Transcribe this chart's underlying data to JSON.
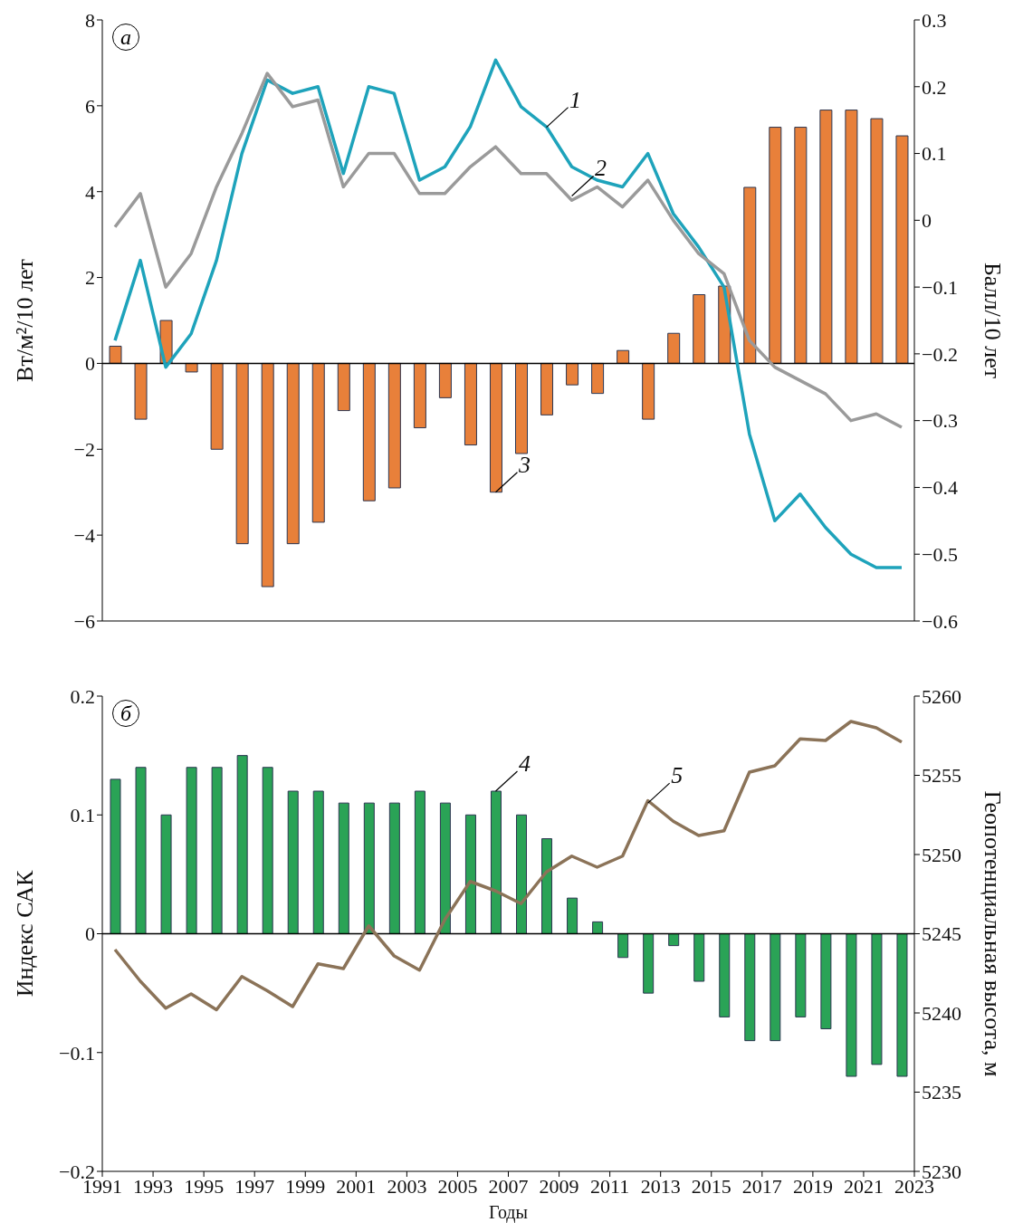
{
  "chart_data": [
    {
      "type": "bar",
      "ylabel": "Вт/м²/10 лет",
      "y2label": "Балл/10 лет",
      "x": [
        1991.5,
        1992.5,
        1993.5,
        1994.5,
        1995.5,
        1996.5,
        1997.5,
        1998.5,
        1999.5,
        2000.5,
        2001.5,
        2002.5,
        2003.5,
        2004.5,
        2005.5,
        2006.5,
        2007.5,
        2008.5,
        2009.5,
        2010.5,
        2011.5,
        2012.5,
        2013.5,
        2014.5,
        2015.5,
        2016.5,
        2017.5,
        2018.5,
        2019.5,
        2020.5,
        2021.5,
        2022.5
      ],
      "xlim": [
        1991,
        2023
      ],
      "xticks": [
        1991,
        1993,
        1995,
        1997,
        1999,
        2001,
        2003,
        2005,
        2007,
        2009,
        2011,
        2013,
        2015,
        2017,
        2019,
        2021,
        2023
      ],
      "ylim": [
        -6,
        8
      ],
      "yticks": [
        -6,
        -4,
        -2,
        0,
        2,
        4,
        6,
        8
      ],
      "y2lim": [
        -0.6,
        0.3
      ],
      "y2ticks": [
        -0.6,
        -0.5,
        -0.4,
        -0.3,
        -0.2,
        -0.1,
        0,
        0.1,
        0.2,
        0.3
      ],
      "tick_labels": "y",
      "legend": false,
      "series": [
        {
          "color": "#e8803a",
          "values": [
            0.4,
            -1.3,
            1.0,
            -0.2,
            -2.0,
            -4.2,
            -5.2,
            -4.2,
            -3.7,
            -1.1,
            -3.2,
            -2.9,
            -1.5,
            -0.8,
            -1.9,
            -3.0,
            -2.1,
            -1.2,
            -0.5,
            -0.7,
            0.3,
            -1.3,
            0.7,
            1.6,
            1.8,
            4.1,
            5.5,
            5.5,
            5.9,
            5.9,
            5.7,
            5.3
          ]
        },
        {
          "type": "line",
          "axis": "y2",
          "color": "#1ea3bb",
          "values": [
            -0.18,
            -0.06,
            -0.22,
            -0.17,
            -0.06,
            0.1,
            0.21,
            0.19,
            0.2,
            0.07,
            0.2,
            0.19,
            0.06,
            0.08,
            0.14,
            0.24,
            0.17,
            0.14,
            0.08,
            0.06,
            0.05,
            0.1,
            0.01,
            -0.04,
            -0.1,
            -0.32,
            -0.45,
            -0.41,
            -0.46,
            -0.5,
            -0.52,
            -0.52
          ]
        },
        {
          "type": "line",
          "axis": "y2",
          "color": "#9a9a9a",
          "values": [
            -0.01,
            0.04,
            -0.1,
            -0.05,
            0.05,
            0.13,
            0.22,
            0.17,
            0.18,
            0.05,
            0.1,
            0.1,
            0.04,
            0.04,
            0.08,
            0.11,
            0.07,
            0.07,
            0.03,
            0.05,
            0.02,
            0.06,
            0.0,
            -0.05,
            -0.08,
            -0.18,
            -0.22,
            -0.24,
            -0.26,
            -0.3,
            -0.29,
            -0.31
          ]
        }
      ],
      "ref_lines": [
        {
          "axis": "y",
          "value": 0
        }
      ],
      "annotations": [
        "а",
        {
          "text": "1",
          "x": 2008.5,
          "y": 5.5
        },
        {
          "text": "2",
          "x": 2009.5,
          "y": 3.9
        },
        {
          "text": "3",
          "x": 2006.5,
          "y": -3.0
        }
      ]
    },
    {
      "type": "bar",
      "xlabel": "Годы",
      "ylabel": "Индекс САК",
      "y2label": "Геопотенциальная высота, м",
      "x": [
        1991.5,
        1992.5,
        1993.5,
        1994.5,
        1995.5,
        1996.5,
        1997.5,
        1998.5,
        1999.5,
        2000.5,
        2001.5,
        2002.5,
        2003.5,
        2004.5,
        2005.5,
        2006.5,
        2007.5,
        2008.5,
        2009.5,
        2010.5,
        2011.5,
        2012.5,
        2013.5,
        2014.5,
        2015.5,
        2016.5,
        2017.5,
        2018.5,
        2019.5,
        2020.5,
        2021.5,
        2022.5
      ],
      "xlim": [
        1991,
        2023
      ],
      "xticks": [
        1991,
        1993,
        1995,
        1997,
        1999,
        2001,
        2003,
        2005,
        2007,
        2009,
        2011,
        2013,
        2015,
        2017,
        2019,
        2021,
        2023
      ],
      "ylim": [
        -0.2,
        0.2
      ],
      "yticks": [
        -0.2,
        -0.1,
        0,
        0.1,
        0.2
      ],
      "y2lim": [
        5230,
        5260
      ],
      "y2ticks": [
        5230,
        5235,
        5240,
        5245,
        5250,
        5255,
        5260
      ],
      "legend": false,
      "series": [
        {
          "color": "#2aa356",
          "values": [
            0.13,
            0.14,
            0.1,
            0.14,
            0.14,
            0.15,
            0.14,
            0.12,
            0.12,
            0.11,
            0.11,
            0.11,
            0.12,
            0.11,
            0.1,
            0.12,
            0.1,
            0.08,
            0.03,
            0.01,
            -0.02,
            -0.05,
            -0.01,
            -0.04,
            -0.07,
            -0.09,
            -0.09,
            -0.07,
            -0.08,
            -0.12,
            -0.11,
            -0.12
          ]
        },
        {
          "type": "line",
          "axis": "y2",
          "color": "#8b7358",
          "values": [
            5244.0,
            5242.0,
            5240.3,
            5241.2,
            5240.2,
            5242.3,
            5241.4,
            5240.4,
            5243.1,
            5242.8,
            5245.5,
            5243.6,
            5242.7,
            5245.9,
            5248.3,
            5247.7,
            5246.9,
            5248.9,
            5249.9,
            5249.2,
            5249.9,
            5253.4,
            5252.1,
            5251.2,
            5251.5,
            5255.2,
            5255.6,
            5257.3,
            5257.2,
            5258.4,
            5258.0,
            5257.1
          ]
        }
      ],
      "ref_lines": [
        {
          "axis": "y",
          "value": 0
        }
      ],
      "annotations": [
        "б",
        {
          "text": "4",
          "x": 2006.5,
          "y": 0.12
        },
        {
          "text": "5",
          "x": 2012.5,
          "y": 0.11
        }
      ]
    }
  ]
}
